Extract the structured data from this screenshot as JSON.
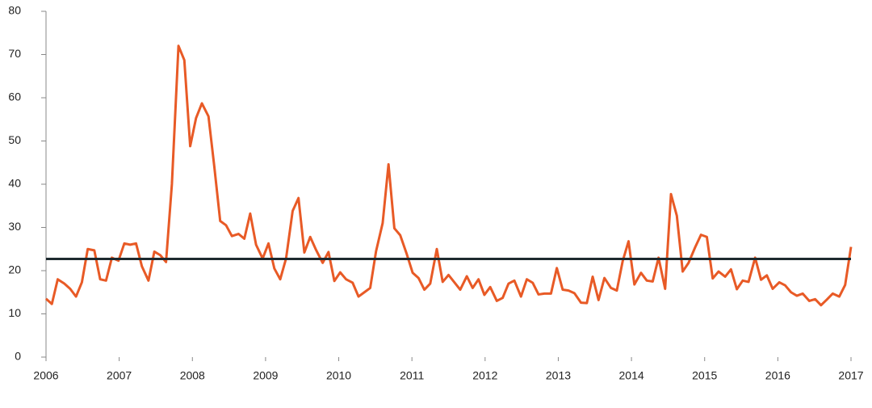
{
  "chart_data": {
    "type": "line",
    "x": [
      2006.0,
      2006.08,
      2006.16,
      2006.25,
      2006.33,
      2006.41,
      2006.49,
      2006.57,
      2006.66,
      2006.74,
      2006.82,
      2006.9,
      2006.99,
      2007.07,
      2007.15,
      2007.23,
      2007.31,
      2007.4,
      2007.48,
      2007.56,
      2007.64,
      2007.72,
      2007.81,
      2007.89,
      2007.97,
      2008.05,
      2008.13,
      2008.22,
      2008.3,
      2008.38,
      2008.46,
      2008.54,
      2008.63,
      2008.71,
      2008.79,
      2008.87,
      2008.96,
      2009.04,
      2009.12,
      2009.2,
      2009.28,
      2009.37,
      2009.45,
      2009.53,
      2009.61,
      2009.69,
      2009.78,
      2009.86,
      2009.94,
      2010.02,
      2010.1,
      2010.19,
      2010.27,
      2010.35,
      2010.43,
      2010.51,
      2010.6,
      2010.68,
      2010.76,
      2010.84,
      2010.93,
      2011.01,
      2011.09,
      2011.17,
      2011.25,
      2011.34,
      2011.42,
      2011.5,
      2011.58,
      2011.66,
      2011.75,
      2011.83,
      2011.91,
      2011.99,
      2012.07,
      2012.16,
      2012.24,
      2012.32,
      2012.4,
      2012.49,
      2012.57,
      2012.65,
      2012.73,
      2012.81,
      2012.9,
      2012.98,
      2013.06,
      2013.14,
      2013.22,
      2013.31,
      2013.39,
      2013.47,
      2013.55,
      2013.63,
      2013.72,
      2013.8,
      2013.88,
      2013.96,
      2014.04,
      2014.13,
      2014.21,
      2014.29,
      2014.37,
      2014.46,
      2014.54,
      2014.62,
      2014.7,
      2014.78,
      2014.87,
      2014.95,
      2015.03,
      2015.11,
      2015.19,
      2015.28,
      2015.36,
      2015.44,
      2015.52,
      2015.6,
      2015.69,
      2015.77,
      2015.85,
      2015.93,
      2016.02,
      2016.1,
      2016.18,
      2016.26,
      2016.34,
      2016.43,
      2016.51,
      2016.59,
      2016.67,
      2016.75,
      2016.84,
      2016.92,
      2017.0
    ],
    "series": [
      {
        "color": "#e85a26",
        "values": [
          13.5,
          12.3,
          18,
          17,
          15.8,
          14,
          17.3,
          25,
          24.7,
          18,
          17.7,
          23,
          22.3,
          26.3,
          26,
          26.3,
          21,
          17.7,
          24.4,
          23.6,
          22,
          40,
          72,
          68.7,
          48.8,
          55.3,
          58.7,
          55.7,
          44,
          31.5,
          30.5,
          28,
          28.5,
          27.4,
          33.2,
          26,
          22.8,
          26.3,
          20.5,
          18,
          22.8,
          33.8,
          36.8,
          24.2,
          27.8,
          24.8,
          21.8,
          24.3,
          17.6,
          19.6,
          18,
          17.2,
          14,
          15,
          16,
          24.5,
          31,
          44.6,
          29.8,
          28.2,
          23.8,
          19.5,
          18.3,
          15.6,
          17,
          25,
          17.4,
          19,
          17.3,
          15.6,
          18.7,
          16,
          18,
          14.4,
          16.2,
          13,
          13.7,
          17,
          17.7,
          14,
          18,
          17.2,
          14.5,
          14.7,
          14.7,
          20.6,
          15.6,
          15.4,
          14.8,
          12.6,
          12.5,
          18.6,
          13.2,
          18.3,
          16,
          15.4,
          22.2,
          26.8,
          16.8,
          19.5,
          17.7,
          17.5,
          23,
          15.8,
          37.7,
          32.7,
          19.8,
          21.8,
          25.4,
          28.3,
          27.8,
          18.2,
          19.8,
          18.6,
          20.3,
          15.7,
          17.7,
          17.4,
          23,
          17.9,
          18.9,
          15.8,
          17.3,
          16.6,
          15,
          14.2,
          14.7,
          13,
          13.4,
          12,
          13.3,
          14.7,
          14,
          16.7,
          25.5
        ]
      }
    ],
    "reference_line": {
      "value": 22.7,
      "color": "#1e2a2f"
    },
    "xlim": [
      2006,
      2017
    ],
    "xticks": [
      2006,
      2007,
      2008,
      2009,
      2010,
      2011,
      2012,
      2013,
      2014,
      2015,
      2016,
      2017
    ],
    "ylim": [
      0,
      80
    ],
    "yticks": [
      0,
      10,
      20,
      30,
      40,
      50,
      60,
      70,
      80
    ],
    "grid": false
  }
}
